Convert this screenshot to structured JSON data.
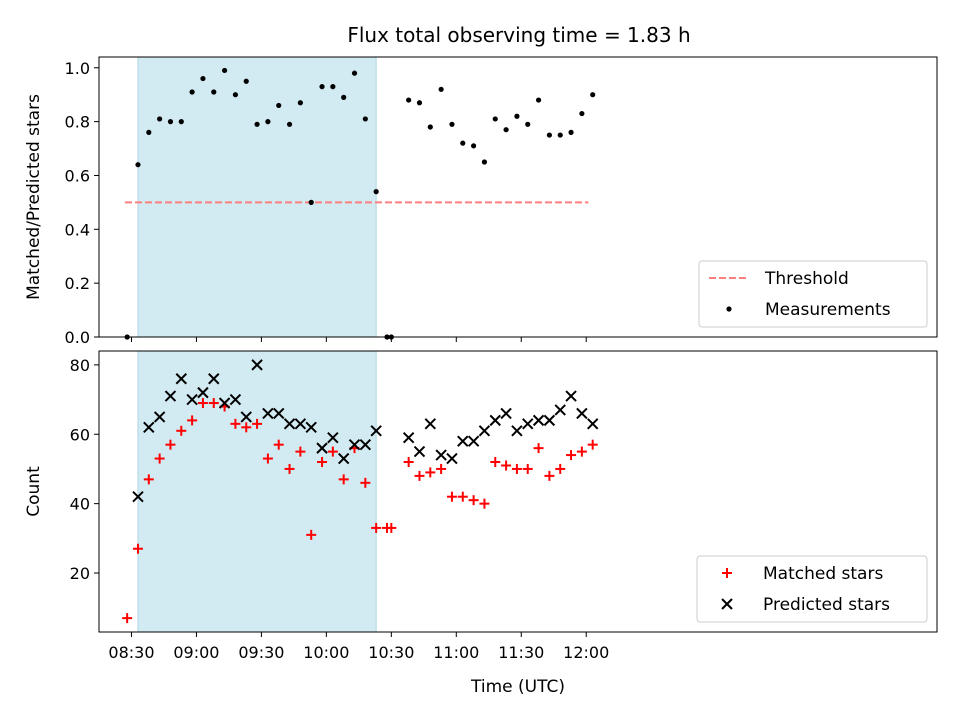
{
  "title": "Flux total observing time = 1.83 h",
  "colors": {
    "threshold": "#ff7f7f",
    "measurement": "#000000",
    "matched": "#ff0000",
    "predicted": "#000000",
    "span": "#add8e6"
  },
  "chart_data": [
    {
      "type": "scatter",
      "ylabel": "Matched/Predicted stars",
      "xlabel": "",
      "ylim": [
        0,
        1.04
      ],
      "xlim_minutes": [
        -15,
        372
      ],
      "yticks": [
        "0.0",
        "0.2",
        "0.4",
        "0.6",
        "0.8",
        "1.0"
      ],
      "ytick_values": [
        0,
        0.2,
        0.4,
        0.6,
        0.8,
        1.0
      ],
      "shaded_span": {
        "start": "08:33",
        "end": "10:23"
      },
      "threshold": {
        "name": "Threshold",
        "value": 0.5,
        "x_start": "08:27",
        "x_end": "12:01"
      },
      "legend": {
        "position": "lower right",
        "entries": [
          "Threshold",
          "Measurements"
        ]
      },
      "series": [
        {
          "name": "Measurements",
          "marker": "dot",
          "x": [
            "08:28",
            "08:33",
            "08:38",
            "08:43",
            "08:48",
            "08:53",
            "08:58",
            "09:03",
            "09:08",
            "09:13",
            "09:18",
            "09:23",
            "09:28",
            "09:33",
            "09:38",
            "09:43",
            "09:48",
            "09:53",
            "09:58",
            "10:03",
            "10:08",
            "10:13",
            "10:18",
            "10:23",
            "10:28",
            "10:30",
            "10:38",
            "10:43",
            "10:48",
            "10:53",
            "10:58",
            "11:03",
            "11:08",
            "11:13",
            "11:18",
            "11:23",
            "11:28",
            "11:33",
            "11:38",
            "11:43",
            "11:48",
            "11:53",
            "11:58",
            "12:03"
          ],
          "y": [
            0.0,
            0.64,
            0.76,
            0.81,
            0.8,
            0.8,
            0.91,
            0.96,
            0.91,
            0.99,
            0.9,
            0.95,
            0.79,
            0.8,
            0.86,
            0.79,
            0.87,
            0.5,
            0.93,
            0.93,
            0.89,
            0.98,
            0.81,
            0.54,
            0.0,
            0.0,
            0.88,
            0.87,
            0.78,
            0.92,
            0.79,
            0.72,
            0.71,
            0.65,
            0.81,
            0.77,
            0.82,
            0.79,
            0.88,
            0.75,
            0.75,
            0.76,
            0.83,
            0.9
          ]
        }
      ]
    },
    {
      "type": "scatter",
      "ylabel": "Count",
      "xlabel": "Time (UTC)",
      "ylim": [
        3,
        84
      ],
      "xlim_minutes": [
        -15,
        372
      ],
      "yticks": [
        "20",
        "40",
        "60",
        "80"
      ],
      "ytick_values": [
        20,
        40,
        60,
        80
      ],
      "xticks": [
        "08:30",
        "09:00",
        "09:30",
        "10:00",
        "10:30",
        "11:00",
        "11:30",
        "12:00"
      ],
      "shaded_span": {
        "start": "08:33",
        "end": "10:23"
      },
      "legend": {
        "position": "lower right",
        "entries": [
          "Matched stars",
          "Predicted stars"
        ]
      },
      "series": [
        {
          "name": "Matched stars",
          "marker": "plus",
          "x": [
            "08:28",
            "08:33",
            "08:38",
            "08:43",
            "08:48",
            "08:53",
            "08:58",
            "09:03",
            "09:08",
            "09:13",
            "09:18",
            "09:23",
            "09:28",
            "09:33",
            "09:38",
            "09:43",
            "09:48",
            "09:53",
            "09:58",
            "10:03",
            "10:08",
            "10:13",
            "10:18",
            "10:23",
            "10:28",
            "10:30",
            "10:38",
            "10:43",
            "10:48",
            "10:53",
            "10:58",
            "11:03",
            "11:08",
            "11:13",
            "11:18",
            "11:23",
            "11:28",
            "11:33",
            "11:38",
            "11:43",
            "11:48",
            "11:53",
            "11:58",
            "12:03"
          ],
          "y": [
            7,
            27,
            47,
            53,
            57,
            61,
            64,
            69,
            69,
            68,
            63,
            62,
            63,
            53,
            57,
            50,
            55,
            31,
            52,
            55,
            47,
            56,
            46,
            33,
            33,
            33,
            52,
            48,
            49,
            50,
            42,
            42,
            41,
            40,
            52,
            51,
            50,
            50,
            56,
            48,
            50,
            54,
            55,
            57
          ]
        },
        {
          "name": "Predicted stars",
          "marker": "x",
          "x": [
            "08:33",
            "08:38",
            "08:43",
            "08:48",
            "08:53",
            "08:58",
            "09:03",
            "09:08",
            "09:13",
            "09:18",
            "09:23",
            "09:28",
            "09:33",
            "09:38",
            "09:43",
            "09:48",
            "09:53",
            "09:58",
            "10:03",
            "10:08",
            "10:13",
            "10:18",
            "10:23",
            "10:38",
            "10:43",
            "10:48",
            "10:53",
            "10:58",
            "11:03",
            "11:08",
            "11:13",
            "11:18",
            "11:23",
            "11:28",
            "11:33",
            "11:38",
            "11:43",
            "11:48",
            "11:53",
            "11:58",
            "12:03"
          ],
          "y": [
            42,
            62,
            65,
            71,
            76,
            70,
            72,
            76,
            69,
            70,
            65,
            80,
            66,
            66,
            63,
            63,
            62,
            56,
            59,
            53,
            57,
            57,
            61,
            59,
            55,
            63,
            54,
            53,
            58,
            58,
            61,
            64,
            66,
            61,
            63,
            64,
            64,
            67,
            71,
            66,
            63
          ]
        }
      ]
    }
  ]
}
